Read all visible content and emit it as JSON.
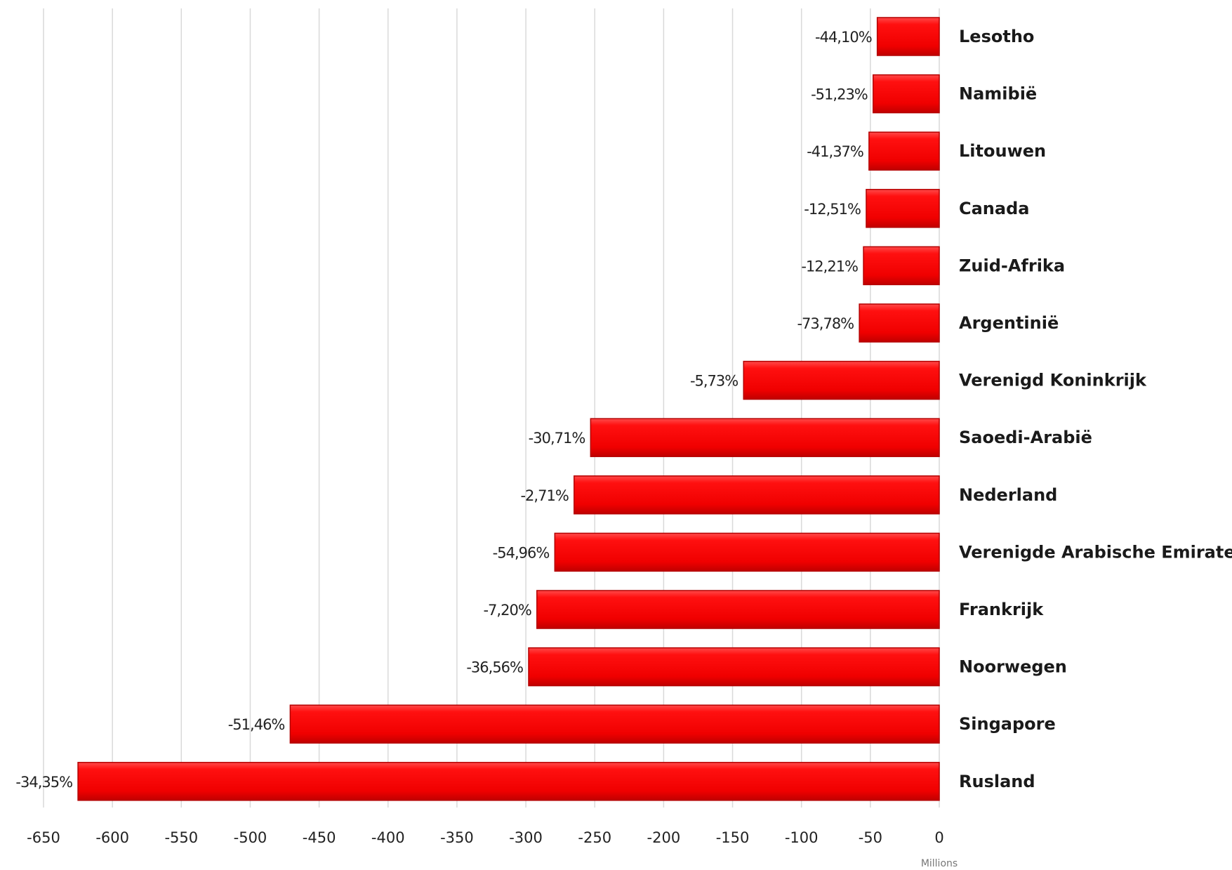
{
  "chart_data": {
    "type": "bar",
    "orientation": "horizontal",
    "title": "",
    "xlabel": "",
    "ylabel": "",
    "x_unit_label": "Millions",
    "xlim": [
      -650,
      0
    ],
    "x_ticks": [
      -650,
      -600,
      -550,
      -500,
      -450,
      -400,
      -350,
      -300,
      -250,
      -200,
      -150,
      -100,
      -50,
      0
    ],
    "grid": true,
    "bar_color": "#ff0000",
    "bar_edge_color": "#b40000",
    "categories": [
      "Lesotho",
      "Namibië",
      "Litouwen",
      "Canada",
      "Zuid-Afrika",
      "Argentinië",
      "Verenigd Koninkrijk",
      "Saoedi-Arabië",
      "Nederland",
      "Verenigde Arabische Emiraten",
      "Frankrijk",
      "Noorwegen",
      "Singapore",
      "Rusland"
    ],
    "values": [
      -45,
      -48,
      -51,
      -53,
      -55,
      -58,
      -142,
      -253,
      -265,
      -279,
      -292,
      -298,
      -471,
      -625
    ],
    "data_labels": [
      "-44,10%",
      "-51,23%",
      "-41,37%",
      "-12,51%",
      "-12,21%",
      "-73,78%",
      "-5,73%",
      "-30,71%",
      "-2,71%",
      "-54,96%",
      "-7,20%",
      "-36,56%",
      "-51,46%",
      "-34,35%"
    ]
  }
}
